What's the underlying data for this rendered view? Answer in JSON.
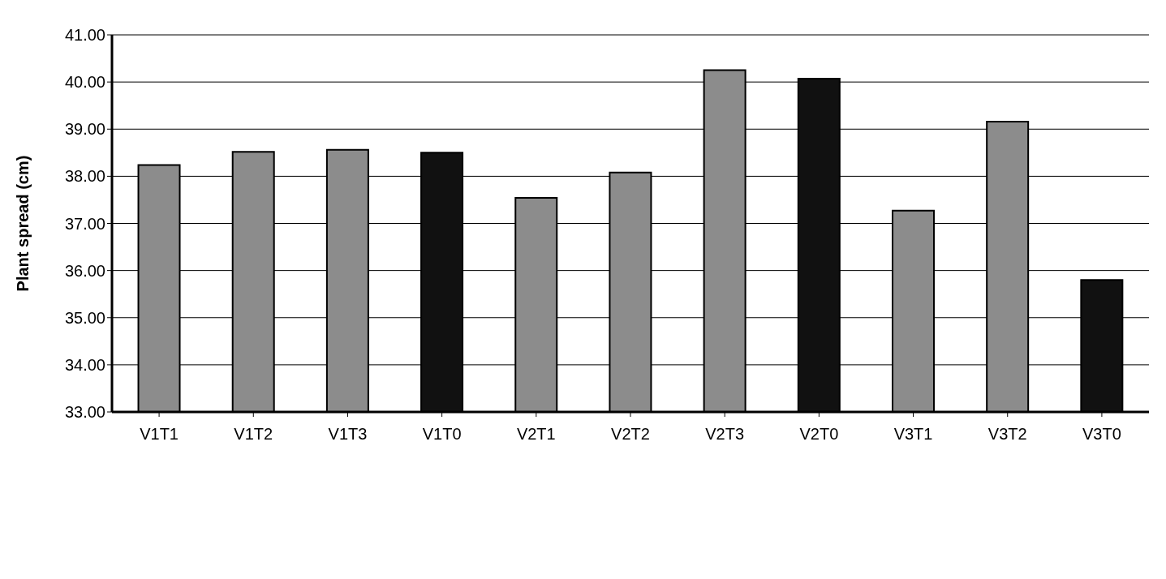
{
  "chart_data": {
    "type": "bar",
    "ylabel": "Plant spread (cm)",
    "categories": [
      "V1T1",
      "V1T2",
      "V1T3",
      "V1T0",
      "V2T1",
      "V2T2",
      "V2T3",
      "V2T0",
      "V3T1",
      "V3T2",
      "V3T0"
    ],
    "values": [
      38.24,
      38.52,
      38.56,
      38.5,
      37.54,
      38.08,
      40.25,
      40.07,
      37.27,
      39.16,
      35.8
    ],
    "colors": [
      "#8c8c8c",
      "#8c8c8c",
      "#8c8c8c",
      "#111111",
      "#8c8c8c",
      "#8c8c8c",
      "#8c8c8c",
      "#111111",
      "#8c8c8c",
      "#8c8c8c",
      "#111111"
    ],
    "ylim": [
      33,
      41
    ],
    "yticks": [
      {
        "value": 33,
        "label": "33.00"
      },
      {
        "value": 34,
        "label": "34.00"
      },
      {
        "value": 35,
        "label": "35.00"
      },
      {
        "value": 36,
        "label": "36.00"
      },
      {
        "value": 37,
        "label": "37.00"
      },
      {
        "value": 38,
        "label": "38.00"
      },
      {
        "value": 39,
        "label": "39.00"
      },
      {
        "value": 40,
        "label": "40.00"
      },
      {
        "value": 41,
        "label": "41.00"
      }
    ],
    "grid": "y",
    "legend": false
  }
}
